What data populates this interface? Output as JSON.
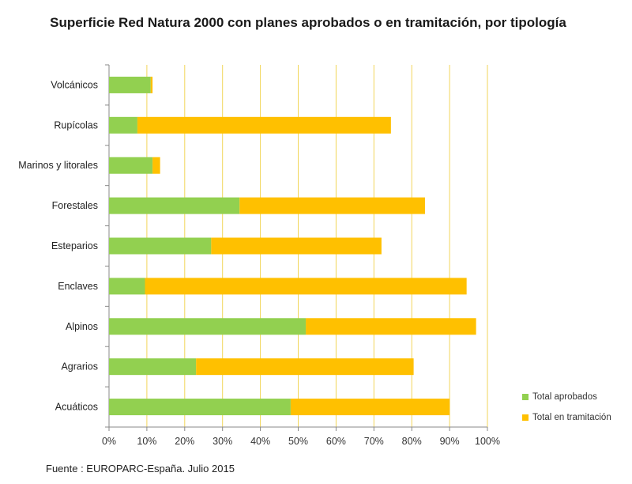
{
  "chart_data": {
    "type": "bar",
    "orientation": "horizontal",
    "stacked": true,
    "title": "Superficie Red Natura 2000 con planes aprobados o en tramitación, por tipología",
    "categories": [
      "Volcánicos",
      "Rupícolas",
      "Marinos y litorales",
      "Forestales",
      "Esteparios",
      "Enclaves",
      "Alpinos",
      "Agrarios",
      "Acuáticos"
    ],
    "series": [
      {
        "name": "Total aprobados",
        "color": "#92d050",
        "values": [
          11,
          7.5,
          11.5,
          34.5,
          27,
          9.5,
          52,
          23,
          48
        ]
      },
      {
        "name": "Total en tramitación",
        "color": "#ffc000",
        "values": [
          0.5,
          67,
          2,
          49,
          45,
          85,
          45,
          57.5,
          42
        ]
      }
    ],
    "xlim": [
      0,
      100
    ],
    "xticks": [
      "0%",
      "10%",
      "20%",
      "30%",
      "40%",
      "50%",
      "60%",
      "70%",
      "80%",
      "90%",
      "100%"
    ],
    "grid": true,
    "legend_position": "bottom-right"
  },
  "source": "Fuente : EUROPARC-España. Julio 2015"
}
